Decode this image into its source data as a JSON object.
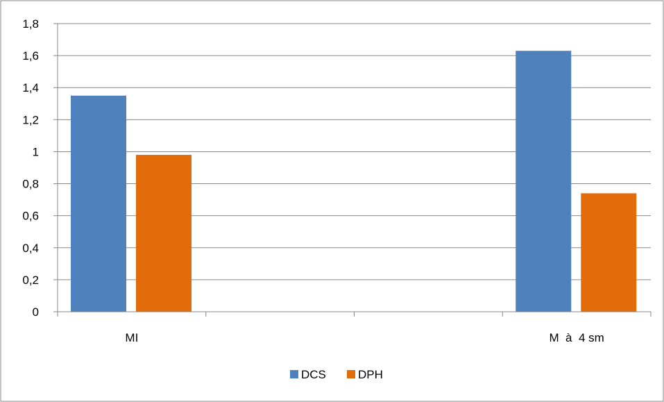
{
  "chart_data": {
    "type": "bar",
    "categories": [
      "MI",
      "",
      "",
      "M  à  4 sm"
    ],
    "series": [
      {
        "name": "DCS",
        "color": "#4F81BD",
        "values": [
          1.35,
          null,
          null,
          1.63
        ]
      },
      {
        "name": "DPH",
        "color": "#E36C0A",
        "values": [
          0.98,
          null,
          null,
          0.74
        ]
      }
    ],
    "ylim": [
      0,
      1.8
    ],
    "yticks": [
      "0",
      "0,2",
      "0,4",
      "0,6",
      "0,8",
      "1",
      "1,2",
      "1,4",
      "1,6",
      "1,8"
    ],
    "grid": true,
    "legend_position": "bottom"
  }
}
